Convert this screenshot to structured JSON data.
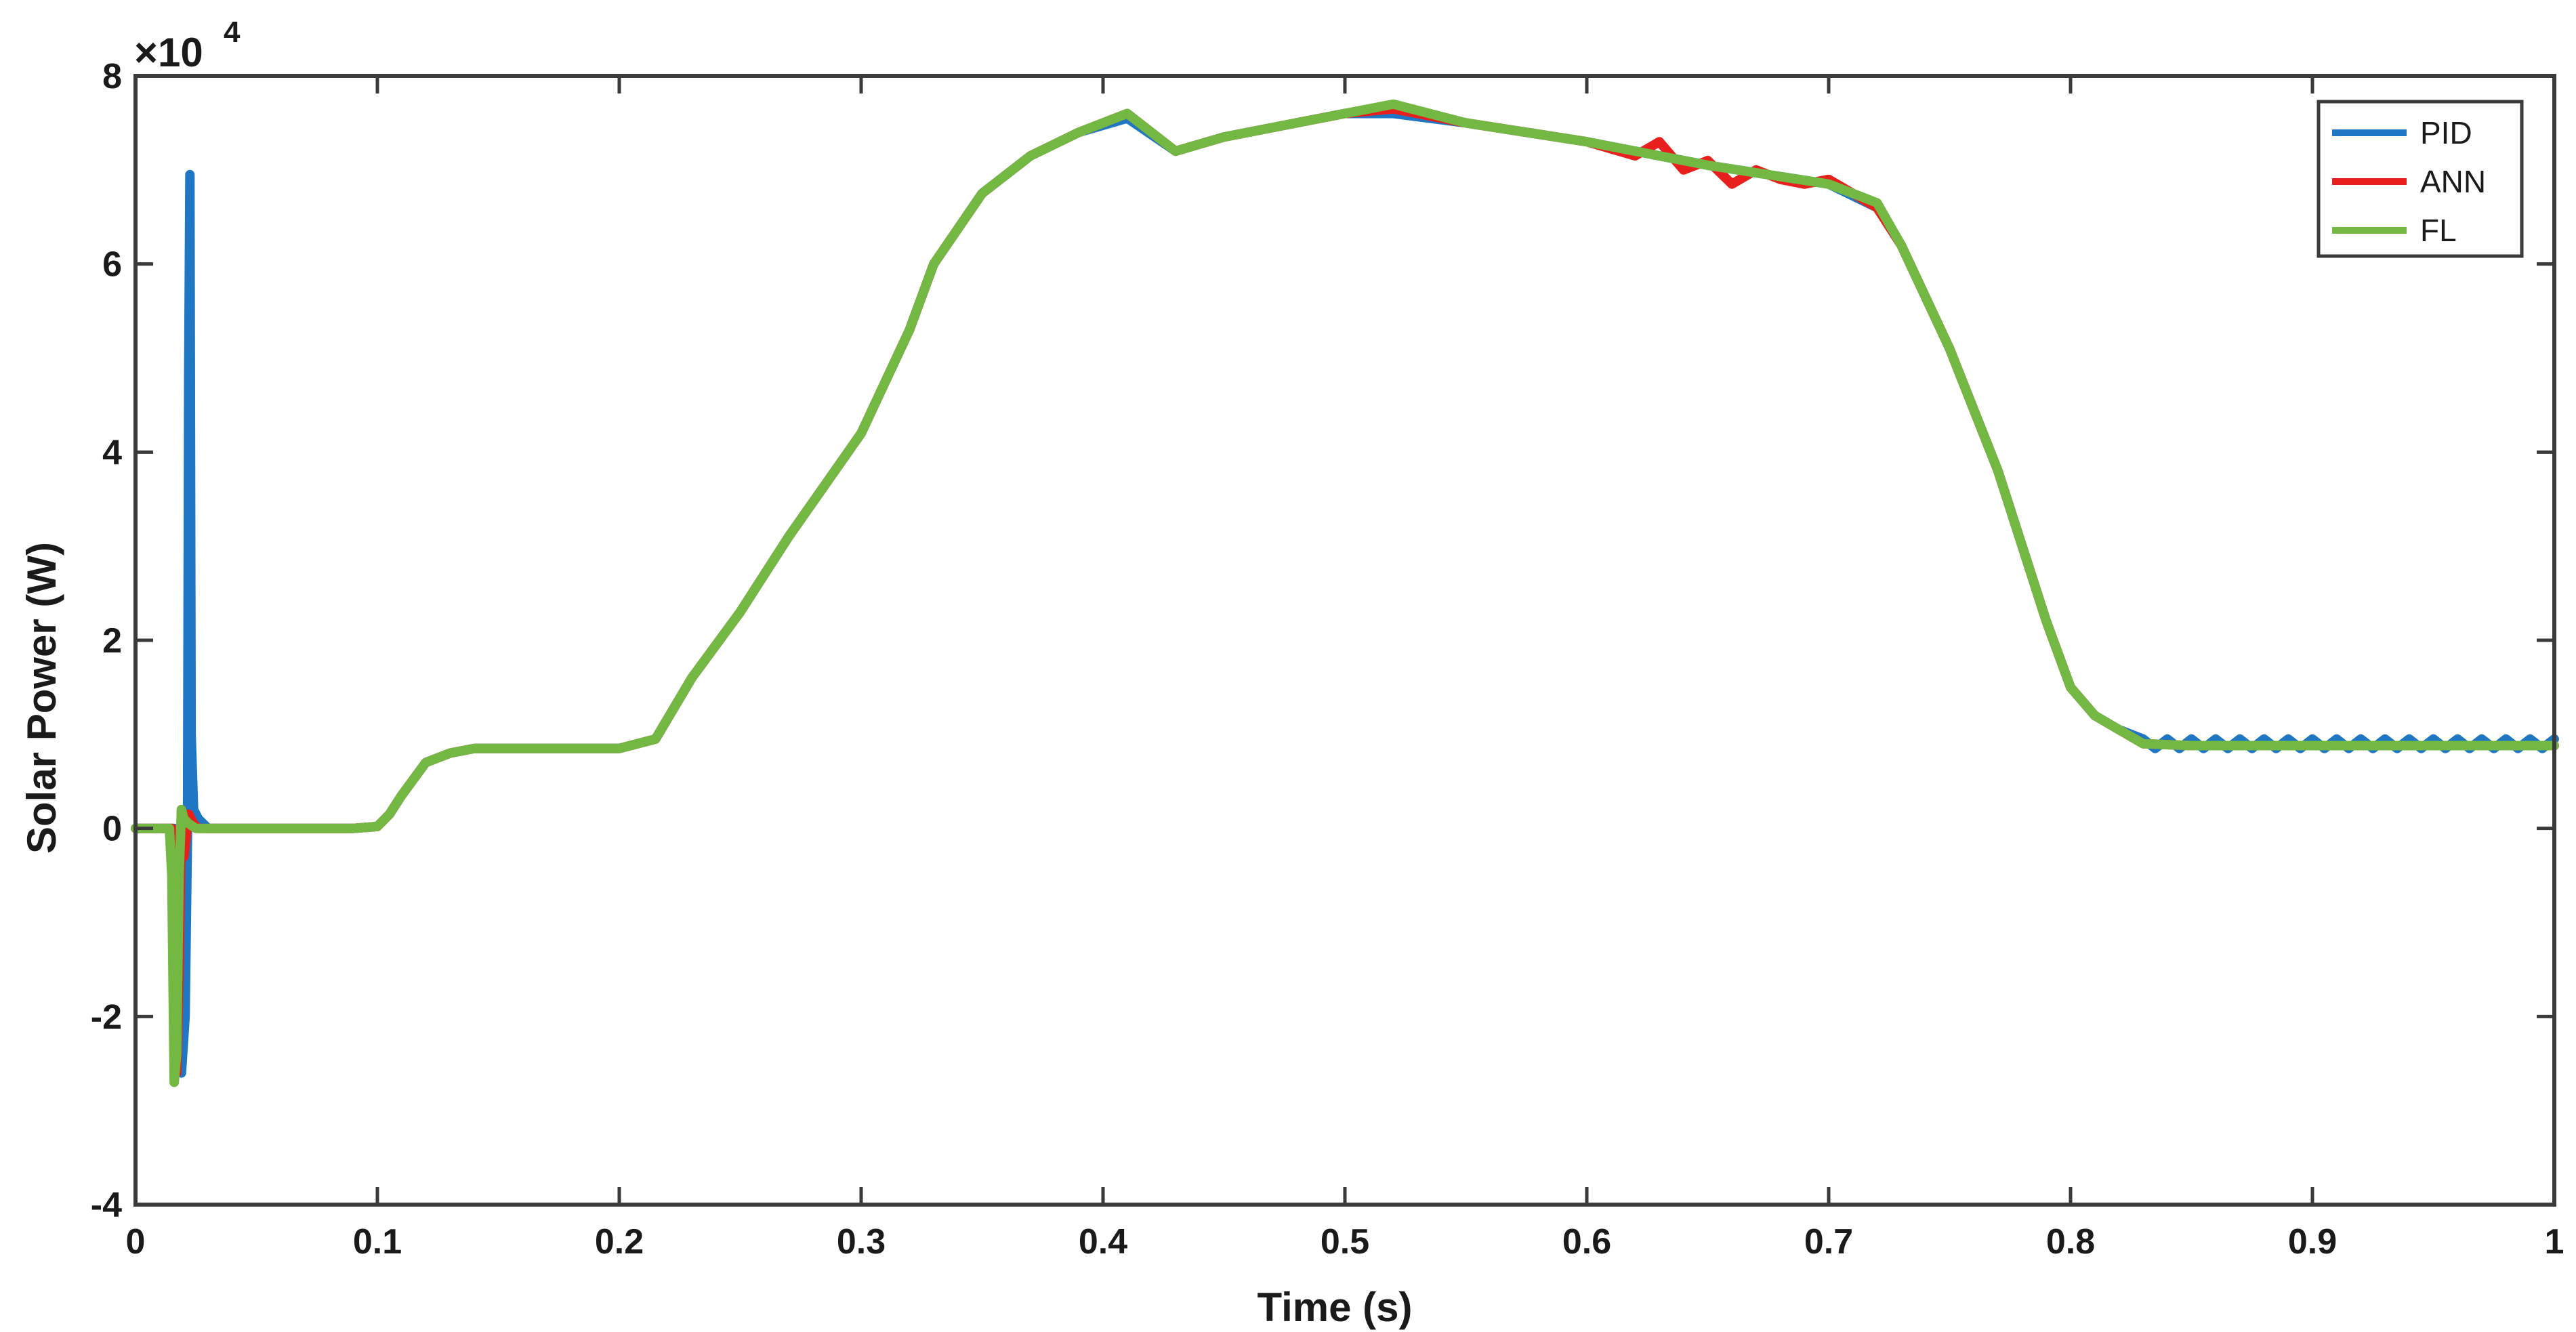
{
  "chart_data": {
    "type": "line",
    "xlabel": "Time (s)",
    "ylabel": "Solar Power (W)",
    "y_multiplier_base": "×10",
    "y_multiplier_exponent": "4",
    "xlim": [
      0,
      1
    ],
    "ylim": [
      -4,
      8
    ],
    "x_ticks": [
      0,
      0.1,
      0.2,
      0.3,
      0.4,
      0.5,
      0.6,
      0.7,
      0.8,
      0.9,
      1
    ],
    "x_tick_labels": [
      "0",
      "0.1",
      "0.2",
      "0.3",
      "0.4",
      "0.5",
      "0.6",
      "0.7",
      "0.8",
      "0.9",
      "1"
    ],
    "y_ticks": [
      -4,
      -2,
      0,
      2,
      4,
      6,
      8
    ],
    "y_tick_labels": [
      "-4",
      "-2",
      "0",
      "2",
      "4",
      "6",
      "8"
    ],
    "grid": false,
    "legend_position": "top-right",
    "series": [
      {
        "name": "PID",
        "color": "#1f77c4",
        "x": [
          0,
          0.016,
          0.0175,
          0.019,
          0.0205,
          0.0215,
          0.022,
          0.0225,
          0.023,
          0.024,
          0.026,
          0.03,
          0.05,
          0.07,
          0.09,
          0.1,
          0.105,
          0.11,
          0.12,
          0.13,
          0.14,
          0.16,
          0.18,
          0.2,
          0.215,
          0.23,
          0.25,
          0.27,
          0.3,
          0.32,
          0.33,
          0.35,
          0.37,
          0.39,
          0.41,
          0.43,
          0.45,
          0.48,
          0.5,
          0.52,
          0.55,
          0.6,
          0.65,
          0.7,
          0.72,
          0.73,
          0.75,
          0.77,
          0.79,
          0.8,
          0.81,
          0.82,
          0.83,
          0.835,
          0.84,
          0.845,
          0.85,
          0.855,
          0.86,
          0.865,
          0.87,
          0.875,
          0.88,
          0.885,
          0.89,
          0.895,
          0.9,
          0.905,
          0.91,
          0.915,
          0.92,
          0.925,
          0.93,
          0.935,
          0.94,
          0.945,
          0.95,
          0.955,
          0.96,
          0.965,
          0.97,
          0.975,
          0.98,
          0.985,
          0.99,
          0.995,
          1.0
        ],
        "y": [
          0,
          0,
          -1.7,
          -2.6,
          -2.0,
          0,
          4.8,
          6.95,
          1.0,
          0.2,
          0.1,
          0,
          0,
          0,
          0,
          0.02,
          0.15,
          0.35,
          0.7,
          0.8,
          0.85,
          0.85,
          0.85,
          0.85,
          0.95,
          1.6,
          2.3,
          3.1,
          4.2,
          5.3,
          6.0,
          6.75,
          7.15,
          7.4,
          7.55,
          7.2,
          7.35,
          7.5,
          7.6,
          7.6,
          7.5,
          7.3,
          7.05,
          6.85,
          6.6,
          6.2,
          5.1,
          3.8,
          2.2,
          1.5,
          1.2,
          1.05,
          0.95,
          0.85,
          0.95,
          0.85,
          0.95,
          0.85,
          0.95,
          0.85,
          0.95,
          0.85,
          0.95,
          0.85,
          0.95,
          0.85,
          0.95,
          0.85,
          0.95,
          0.85,
          0.95,
          0.85,
          0.95,
          0.85,
          0.95,
          0.85,
          0.95,
          0.85,
          0.95,
          0.85,
          0.95,
          0.85,
          0.95,
          0.85,
          0.95,
          0.85,
          0.95
        ]
      },
      {
        "name": "ANN",
        "color": "#e8201d",
        "x": [
          0,
          0.015,
          0.016,
          0.017,
          0.018,
          0.019,
          0.02,
          0.022,
          0.024,
          0.026,
          0.03,
          0.05,
          0.07,
          0.09,
          0.1,
          0.105,
          0.11,
          0.12,
          0.13,
          0.14,
          0.16,
          0.18,
          0.2,
          0.215,
          0.23,
          0.25,
          0.27,
          0.3,
          0.32,
          0.33,
          0.35,
          0.37,
          0.39,
          0.41,
          0.43,
          0.45,
          0.48,
          0.5,
          0.52,
          0.55,
          0.6,
          0.62,
          0.63,
          0.64,
          0.65,
          0.66,
          0.67,
          0.68,
          0.69,
          0.7,
          0.71,
          0.72,
          0.73,
          0.75,
          0.77,
          0.79,
          0.8,
          0.81,
          0.82,
          0.83,
          0.85,
          0.87,
          0.89,
          0.91,
          0.93,
          0.95,
          0.97,
          0.99,
          1.0
        ],
        "y": [
          0,
          0,
          -2.2,
          -2.6,
          -1.5,
          0.2,
          -0.3,
          0.15,
          0.05,
          0,
          0,
          0,
          0,
          0,
          0.02,
          0.15,
          0.35,
          0.7,
          0.8,
          0.85,
          0.85,
          0.85,
          0.85,
          0.95,
          1.6,
          2.3,
          3.1,
          4.2,
          5.3,
          6.0,
          6.75,
          7.15,
          7.4,
          7.6,
          7.2,
          7.35,
          7.5,
          7.6,
          7.65,
          7.5,
          7.3,
          7.15,
          7.3,
          7.0,
          7.1,
          6.85,
          7.0,
          6.9,
          6.85,
          6.9,
          6.75,
          6.6,
          6.2,
          5.1,
          3.8,
          2.2,
          1.5,
          1.2,
          1.05,
          0.9,
          0.88,
          0.88,
          0.88,
          0.88,
          0.88,
          0.88,
          0.88,
          0.88,
          0.88
        ]
      },
      {
        "name": "FL",
        "color": "#72b843",
        "x": [
          0,
          0.014,
          0.015,
          0.016,
          0.017,
          0.018,
          0.019,
          0.02,
          0.022,
          0.025,
          0.03,
          0.05,
          0.07,
          0.09,
          0.1,
          0.105,
          0.11,
          0.12,
          0.13,
          0.14,
          0.16,
          0.18,
          0.2,
          0.215,
          0.23,
          0.25,
          0.27,
          0.3,
          0.32,
          0.33,
          0.35,
          0.37,
          0.39,
          0.41,
          0.43,
          0.45,
          0.48,
          0.5,
          0.52,
          0.55,
          0.6,
          0.65,
          0.7,
          0.72,
          0.73,
          0.75,
          0.77,
          0.79,
          0.8,
          0.81,
          0.82,
          0.83,
          0.85,
          0.87,
          0.89,
          0.91,
          0.93,
          0.95,
          0.97,
          0.99,
          1.0
        ],
        "y": [
          0,
          0,
          -0.5,
          -2.7,
          -2.4,
          -0.5,
          0.2,
          0.1,
          0.05,
          0,
          0,
          0,
          0,
          0,
          0.02,
          0.15,
          0.35,
          0.7,
          0.8,
          0.85,
          0.85,
          0.85,
          0.85,
          0.95,
          1.6,
          2.3,
          3.1,
          4.2,
          5.3,
          6.0,
          6.75,
          7.15,
          7.4,
          7.6,
          7.2,
          7.35,
          7.5,
          7.6,
          7.7,
          7.5,
          7.3,
          7.05,
          6.85,
          6.65,
          6.2,
          5.1,
          3.8,
          2.2,
          1.5,
          1.2,
          1.05,
          0.9,
          0.88,
          0.88,
          0.88,
          0.88,
          0.88,
          0.88,
          0.88,
          0.88,
          0.88
        ]
      }
    ]
  }
}
